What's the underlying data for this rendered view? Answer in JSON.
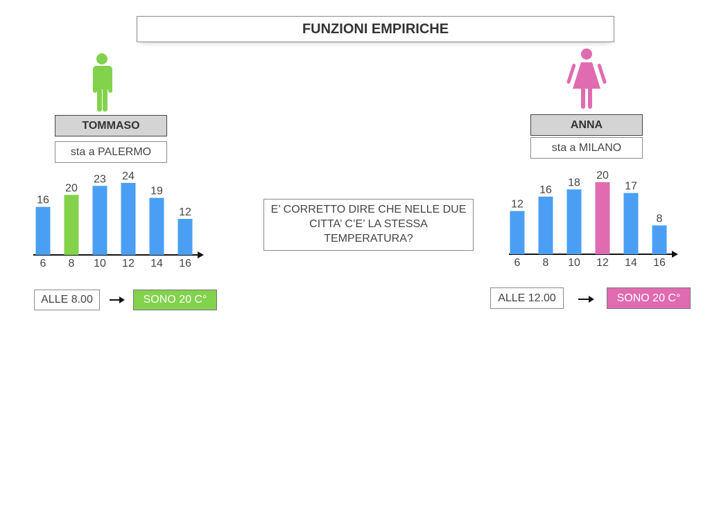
{
  "title": "FUNZIONI EMPIRICHE",
  "question": "E’ CORRETTO DIRE CHE NELLE DUE CITTA’ C’E’ LA STESSA TEMPERATURA?",
  "persons": [
    {
      "name": "TOMMASO",
      "city": "sta a PALERMO",
      "time_label": "ALLE 8.00",
      "result_label": "SONO 20 C°",
      "figure_icon": "man-icon",
      "figure_color": "#82d24c"
    },
    {
      "name": "ANNA",
      "city": "sta a MILANO",
      "time_label": "ALLE 12.00",
      "result_label": "SONO 20 C°",
      "figure_icon": "woman-icon",
      "figure_color": "#e06bb1"
    }
  ],
  "colors": {
    "bar": "#4a9ff5",
    "highlight_green": "#82d24c",
    "highlight_pink": "#e06bb1"
  },
  "chart_data": [
    {
      "type": "bar",
      "categories": [
        "6",
        "8",
        "10",
        "12",
        "14",
        "16"
      ],
      "values": [
        16,
        20,
        23,
        24,
        19,
        12
      ],
      "highlight_index": 1,
      "highlight_color": "#82d24c",
      "bar_color": "#4a9ff5",
      "ylim": [
        0,
        24
      ],
      "grid": false
    },
    {
      "type": "bar",
      "categories": [
        "6",
        "8",
        "10",
        "12",
        "14",
        "16"
      ],
      "values": [
        12,
        16,
        18,
        20,
        17,
        8
      ],
      "highlight_index": 3,
      "highlight_color": "#e06bb1",
      "bar_color": "#4a9ff5",
      "ylim": [
        0,
        20
      ],
      "grid": false
    }
  ]
}
